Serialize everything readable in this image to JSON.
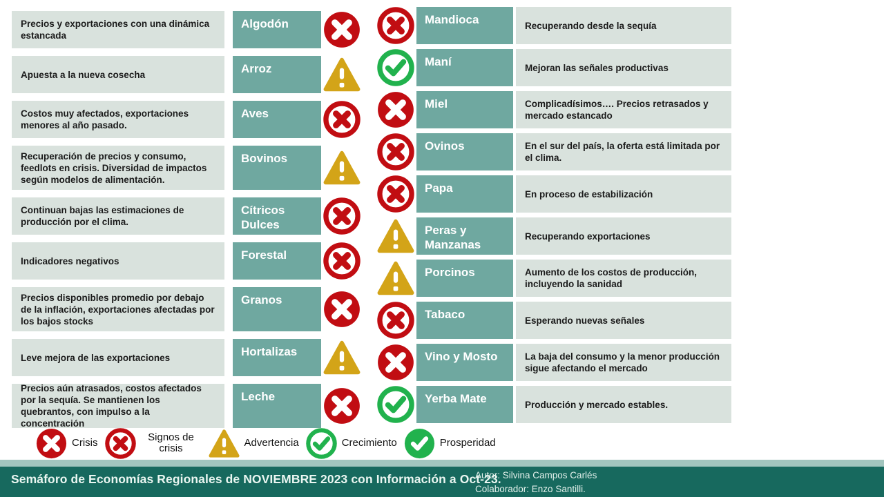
{
  "colors": {
    "teal_cell": "#6fa8a0",
    "desc_cell": "#d9e2dd",
    "crisis_red": "#c10d12",
    "growth_green": "#21b24d",
    "warning_gold": "#d3a418",
    "footer_bg": "#17695e",
    "footer_strip": "#a2c5be",
    "text_dark": "#1b1b1b"
  },
  "left_rows": [
    {
      "desc": "Precios y exportaciones con una dinámica estancada",
      "name": "Algodón",
      "status": "crisis"
    },
    {
      "desc": "Apuesta a la nueva cosecha",
      "name": "Arroz",
      "status": "advertencia"
    },
    {
      "desc": "Costos muy afectados, exportaciones menores al año pasado.",
      "name": "Aves",
      "status": "signos"
    },
    {
      "desc": "Recuperación de precios y consumo, feedlots en crisis. Diversidad de impactos según modelos de alimentación.",
      "name": "Bovinos",
      "status": "advertencia"
    },
    {
      "desc": "Continuan bajas las estimaciones de producción por el clima.",
      "name": "Cítricos Dulces",
      "status": "signos"
    },
    {
      "desc": "Indicadores negativos",
      "name": "Forestal",
      "status": "signos"
    },
    {
      "desc": "Precios disponibles promedio por debajo de la inflación, exportaciones afectadas por los bajos stocks",
      "name": "Granos",
      "status": "crisis"
    },
    {
      "desc": "Leve mejora de las exportaciones",
      "name": "Hortalizas",
      "status": "advertencia"
    },
    {
      "desc": "Precios aún atrasados, costos afectados por la sequía. Se mantienen los quebrantos, con impulso a la concentración",
      "name": "Leche",
      "status": "crisis"
    }
  ],
  "right_rows": [
    {
      "status": "signos",
      "name": "Mandioca",
      "desc": "Recuperando desde la sequía"
    },
    {
      "status": "crecimiento",
      "name": "Maní",
      "desc": "Mejoran las señales productivas"
    },
    {
      "status": "crisis",
      "name": "Miel",
      "desc": "Complicadísimos…. Precios retrasados y mercado estancado"
    },
    {
      "status": "signos",
      "name": "Ovinos",
      "desc": "En el sur del país, la oferta está limitada por el clima."
    },
    {
      "status": "signos",
      "name": "Papa",
      "desc": "En proceso de estabilización"
    },
    {
      "status": "advertencia",
      "name": "Peras y Manzanas",
      "desc": "Recuperando exportaciones"
    },
    {
      "status": "advertencia",
      "name": "Porcinos",
      "desc": "Aumento de los costos de producción, incluyendo la sanidad"
    },
    {
      "status": "signos",
      "name": "Tabaco",
      "desc": "Esperando nuevas señales"
    },
    {
      "status": "crisis",
      "name": "Vino y Mosto",
      "desc": "La baja del consumo y la menor producción sigue afectando el mercado"
    },
    {
      "status": "crecimiento",
      "name": "Yerba Mate",
      "desc": "Producción y mercado estables."
    }
  ],
  "legend": [
    {
      "type": "crisis",
      "label": "Crisis"
    },
    {
      "type": "signos",
      "label": "Signos de crisis"
    },
    {
      "type": "advertencia",
      "label": "Advertencia"
    },
    {
      "type": "crecimiento",
      "label": "Crecimiento"
    },
    {
      "type": "prosperidad",
      "label": "Prosperidad"
    }
  ],
  "footer": {
    "title": "Semáforo de Economías Regionales de NOVIEMBRE 2023 con Información a Oct-23.",
    "author": "Autor:  Silvina Campos Carlés",
    "collaborator": "Colaborador:  Enzo Santilli."
  }
}
